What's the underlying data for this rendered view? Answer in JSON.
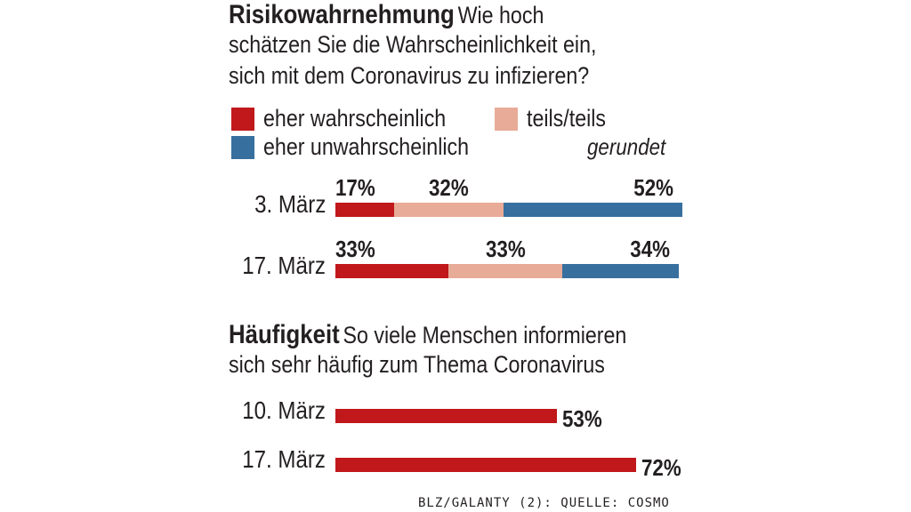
{
  "section1": {
    "title": "Risikowahrnehmung",
    "subtitle_1": "Wie hoch",
    "subtitle_2": "schätzen Sie die Wahrscheinlichkeit ein,",
    "subtitle_3": "sich mit dem Coronavirus zu infizieren?",
    "legend": [
      {
        "label": "eher wahrscheinlich",
        "color": "#c0181b"
      },
      {
        "label": "teils/teils",
        "color": "#e8ab97"
      },
      {
        "label": "eher unwahrscheinlich",
        "color": "#376f9e"
      }
    ],
    "note": "gerundet"
  },
  "section2": {
    "title": "Häufigkeit",
    "subtitle_1": "So viele Menschen informieren",
    "subtitle_2": "sich sehr häufig zum Thema Coronavirus"
  },
  "source": "BLZ/GALANTY (2): QUELLE: COSMO",
  "chart_data": [
    {
      "type": "bar",
      "orientation": "horizontal",
      "stacked": true,
      "title": "Risikowahrnehmung",
      "categories": [
        "3. März",
        "17. März"
      ],
      "series": [
        {
          "name": "eher wahrscheinlich",
          "values": [
            17,
            33
          ],
          "labels": [
            "17%",
            "33%"
          ],
          "color": "#c0181b"
        },
        {
          "name": "teils/teils",
          "values": [
            32,
            33
          ],
          "labels": [
            "32%",
            "33%"
          ],
          "color": "#e8ab97"
        },
        {
          "name": "eher unwahrscheinlich",
          "values": [
            52,
            34
          ],
          "labels": [
            "52%",
            "34%"
          ],
          "color": "#376f9e"
        }
      ],
      "unit": "%"
    },
    {
      "type": "bar",
      "orientation": "horizontal",
      "title": "Häufigkeit",
      "categories": [
        "10. März",
        "17. März"
      ],
      "values": [
        53,
        72
      ],
      "labels": [
        "53%",
        "72%"
      ],
      "color": "#c0181b",
      "unit": "%"
    }
  ]
}
